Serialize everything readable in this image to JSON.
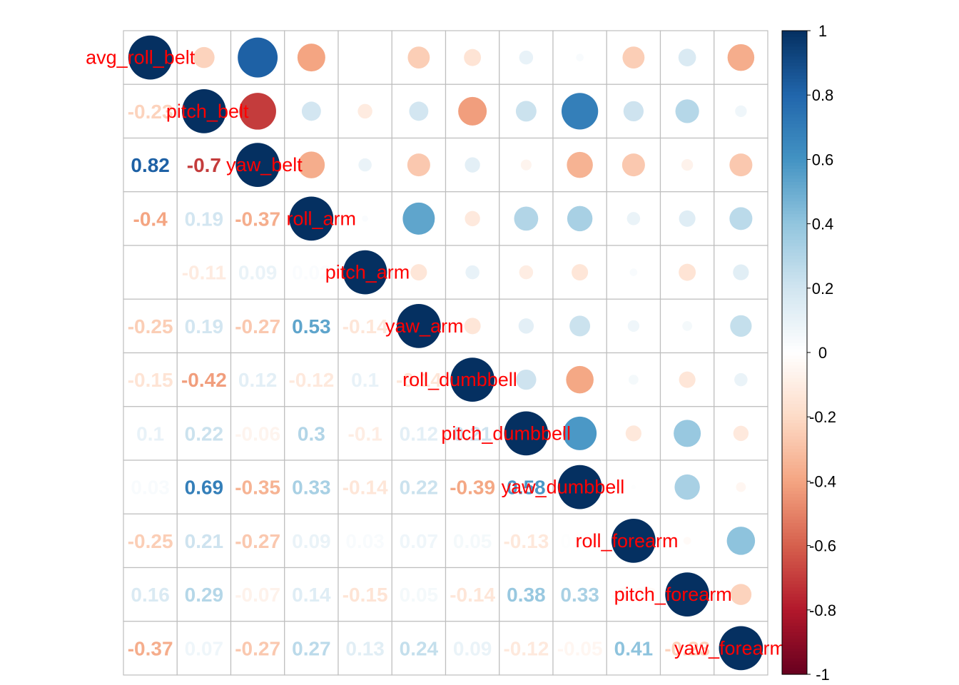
{
  "chart_data": {
    "type": "heatmap",
    "variables": [
      "avg_roll_belt",
      "pitch_belt",
      "yaw_belt",
      "roll_arm",
      "pitch_arm",
      "yaw_arm",
      "roll_dumbbell",
      "pitch_dumbbell",
      "yaw_dumbbell",
      "roll_forearm",
      "pitch_forearm",
      "yaw_forearm"
    ],
    "lower_labels": [
      [],
      [
        "-0.23"
      ],
      [
        "0.82",
        "-0.7"
      ],
      [
        "-0.4",
        "0.19",
        "-0.37"
      ],
      [
        "0",
        "-0.11",
        "0.09",
        "0.02"
      ],
      [
        "-0.25",
        "0.19",
        "-0.27",
        "0.53",
        "-0.14"
      ],
      [
        "-0.15",
        "-0.42",
        "0.12",
        "-0.12",
        "0.1",
        "-0.14"
      ],
      [
        "0.1",
        "0.22",
        "-0.06",
        "0.3",
        "-0.1",
        "0.12",
        "0.21"
      ],
      [
        "0.03",
        "0.69",
        "-0.35",
        "0.33",
        "-0.14",
        "0.22",
        "-0.39",
        "0.58"
      ],
      [
        "-0.25",
        "0.21",
        "-0.27",
        "0.09",
        "0.03",
        "0.07",
        "0.05",
        "-0.13",
        "0.01"
      ],
      [
        "0.16",
        "0.29",
        "-0.07",
        "0.14",
        "-0.15",
        "0.05",
        "-0.14",
        "0.38",
        "0.33",
        "-0.03"
      ],
      [
        "-0.37",
        "0.07",
        "-0.27",
        "0.27",
        "0.13",
        "0.24",
        "0.09",
        "-0.12",
        "-0.05",
        "0.41",
        "-0.23"
      ]
    ],
    "colorbar": {
      "range": [
        -1,
        1
      ],
      "tick_labels": [
        "1",
        "0.8",
        "0.6",
        "0.4",
        "0.2",
        "0",
        "-0.2",
        "-0.4",
        "-0.6",
        "-0.8",
        "-1"
      ]
    },
    "colors": {
      "positive_end": "#053061",
      "negative_end": "#67001f",
      "label_color": "#ff0000",
      "grid": "#bebebe"
    }
  }
}
